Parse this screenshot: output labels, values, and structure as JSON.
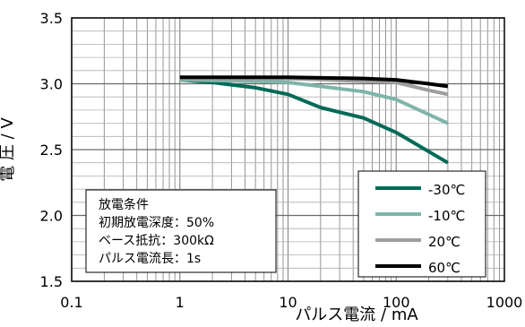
{
  "chart_data": {
    "type": "line",
    "x_scale": "log",
    "xlim": [
      0.1,
      1000
    ],
    "ylim": [
      1.5,
      3.5
    ],
    "grid": true,
    "legend_position": "bottom-right",
    "xlabel": "パルス電流 / mA",
    "ylabel": "電 圧 / V",
    "x_ticks": [
      "0.1",
      "1",
      "10",
      "100",
      "1000"
    ],
    "y_ticks": [
      "1.5",
      "2.0",
      "2.5",
      "3.0",
      "3.5"
    ],
    "series": [
      {
        "name": "-30℃",
        "color": "#006a57",
        "points": [
          [
            1,
            3.03
          ],
          [
            2,
            3.01
          ],
          [
            5,
            2.97
          ],
          [
            10,
            2.92
          ],
          [
            20,
            2.82
          ],
          [
            50,
            2.74
          ],
          [
            100,
            2.63
          ],
          [
            300,
            2.4
          ]
        ]
      },
      {
        "name": "-10℃",
        "color": "#7fb5a9",
        "points": [
          [
            1,
            3.03
          ],
          [
            5,
            3.02
          ],
          [
            10,
            3.01
          ],
          [
            20,
            2.98
          ],
          [
            50,
            2.94
          ],
          [
            100,
            2.88
          ],
          [
            300,
            2.7
          ]
        ]
      },
      {
        "name": "20℃",
        "color": "#9e9e9e",
        "points": [
          [
            1,
            3.04
          ],
          [
            10,
            3.04
          ],
          [
            50,
            3.02
          ],
          [
            100,
            3.01
          ],
          [
            200,
            2.95
          ],
          [
            300,
            2.92
          ]
        ]
      },
      {
        "name": "60℃",
        "color": "#000000",
        "points": [
          [
            1,
            3.05
          ],
          [
            10,
            3.05
          ],
          [
            50,
            3.04
          ],
          [
            100,
            3.03
          ],
          [
            200,
            3.0
          ],
          [
            300,
            2.98
          ]
        ]
      }
    ],
    "annotation": [
      "放電条件",
      "初期放電深度：50%",
      "ベース抵抗：300kΩ",
      "パルス電流長：1s"
    ]
  }
}
